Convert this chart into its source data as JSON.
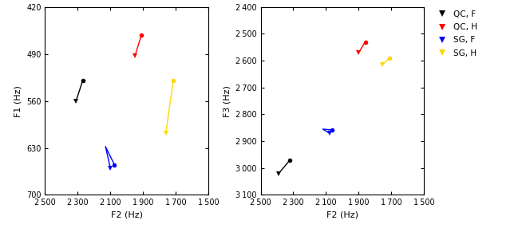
{
  "left": {
    "xlabel": "F2 (Hz)",
    "ylabel": "F1 (Hz)",
    "xlim": [
      2500,
      1500
    ],
    "ylim": [
      700,
      420
    ],
    "xticks": [
      2500,
      2300,
      2100,
      1900,
      1700,
      1500
    ],
    "yticks": [
      420,
      490,
      560,
      630,
      700
    ],
    "series": {
      "QC_F": {
        "color": "black",
        "points": [
          [
            2310,
            560
          ],
          [
            2270,
            530
          ]
        ]
      },
      "QC_H": {
        "color": "red",
        "points": [
          [
            1950,
            493
          ],
          [
            1910,
            462
          ]
        ]
      },
      "SG_F": {
        "color": "blue",
        "points": [
          [
            2100,
            660
          ],
          [
            2130,
            628
          ],
          [
            2075,
            655
          ]
        ]
      },
      "SG_H": {
        "color": "#FFD700",
        "points": [
          [
            1760,
            608
          ],
          [
            1740,
            572
          ],
          [
            1715,
            530
          ]
        ]
      }
    }
  },
  "right": {
    "xlabel": "F2 (Hz)",
    "ylabel": "F3 (Hz)",
    "xlim": [
      2500,
      1500
    ],
    "ylim": [
      3100,
      2400
    ],
    "xticks": [
      2500,
      2300,
      2100,
      1900,
      1700,
      1500
    ],
    "yticks": [
      2400,
      2500,
      2600,
      2700,
      2800,
      2900,
      3000,
      3100
    ],
    "series": {
      "QC_F": {
        "color": "black",
        "points": [
          [
            2390,
            3020
          ],
          [
            2320,
            2970
          ]
        ]
      },
      "QC_H": {
        "color": "red",
        "points": [
          [
            1900,
            2570
          ],
          [
            1860,
            2530
          ]
        ]
      },
      "SG_F": {
        "color": "blue",
        "points": [
          [
            2080,
            2870
          ],
          [
            2120,
            2855
          ],
          [
            2065,
            2858
          ]
        ]
      },
      "SG_H": {
        "color": "#FFD700",
        "points": [
          [
            1755,
            2615
          ],
          [
            1710,
            2590
          ]
        ]
      }
    }
  },
  "legend": {
    "labels": [
      "QC, F",
      "QC, H",
      "SG, F",
      "SG, H"
    ],
    "colors": [
      "black",
      "red",
      "blue",
      "#FFD700"
    ]
  }
}
